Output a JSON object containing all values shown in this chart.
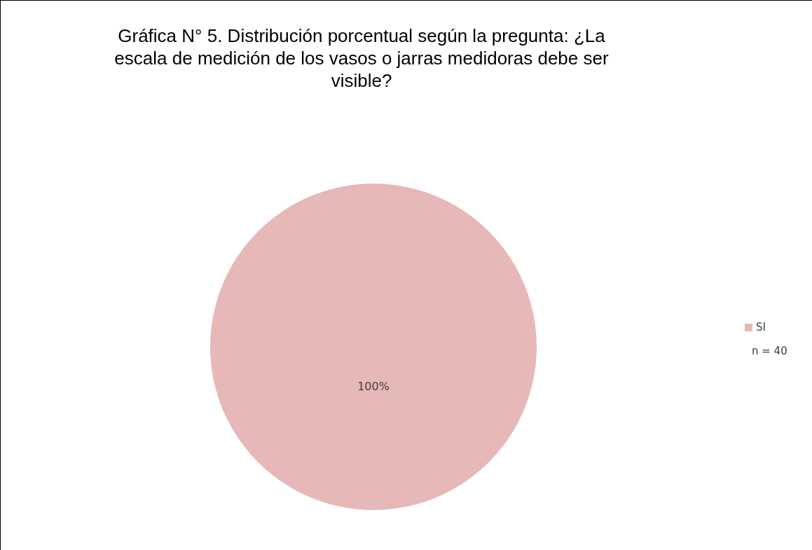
{
  "chart_data": {
    "type": "pie",
    "title": "Gráfica N° 5. Distribución porcentual según la pregunta: ¿La escala de medición de los vasos o jarras medidoras debe ser visible?",
    "categories": [
      "SI"
    ],
    "values": [
      100
    ],
    "colors": [
      "#e6b8b7"
    ],
    "value_labels": [
      "100%"
    ],
    "legend": "right",
    "annotations": [
      "n = 40"
    ]
  }
}
